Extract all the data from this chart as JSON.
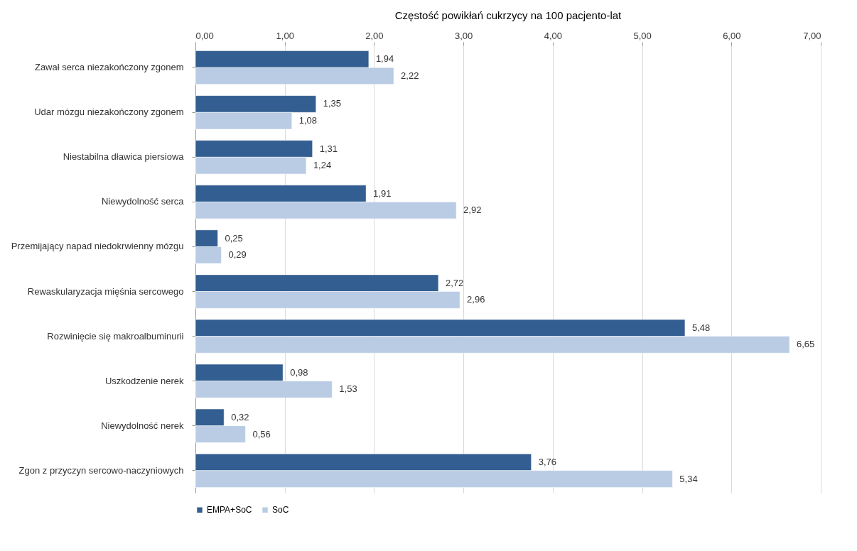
{
  "chart_data": {
    "type": "bar",
    "orientation": "horizontal",
    "title": "Częstość powikłań cukrzycy na 100 pacjento-lat",
    "categories": [
      "Zawał serca niezakończony zgonem",
      "Udar mózgu niezakończony zgonem",
      "Niestabilna dławica piersiowa",
      "Niewydolność serca",
      "Przemijający napad niedokrwienny mózgu",
      "Rewaskularyzacja mięśnia sercowego",
      "Rozwinięcie się makroalbuminurii",
      "Uszkodzenie nerek",
      "Niewydolność nerek",
      "Zgon z przyczyn sercowo-naczyniowych"
    ],
    "series": [
      {
        "name": "EMPA+SoC",
        "color": "#335e91",
        "values": [
          1.94,
          1.35,
          1.31,
          1.91,
          0.25,
          2.72,
          5.48,
          0.98,
          0.32,
          3.76
        ],
        "value_labels": [
          "1,94",
          "1,35",
          "1,31",
          "1,91",
          "0,25",
          "2,72",
          "5,48",
          "0,98",
          "0,32",
          "3,76"
        ]
      },
      {
        "name": "SoC",
        "color": "#b9cce4",
        "values": [
          2.22,
          1.08,
          1.24,
          2.92,
          0.29,
          2.96,
          6.65,
          1.53,
          0.56,
          5.34
        ],
        "value_labels": [
          "2,22",
          "1,08",
          "1,24",
          "2,92",
          "0,29",
          "2,96",
          "6,65",
          "1,53",
          "0,56",
          "5,34"
        ]
      }
    ],
    "xlim": [
      0,
      7
    ],
    "xticks": [
      {
        "value": 0,
        "label": "0,00"
      },
      {
        "value": 1,
        "label": "1,00"
      },
      {
        "value": 2,
        "label": "2,00"
      },
      {
        "value": 3,
        "label": "3,00"
      },
      {
        "value": 4,
        "label": "4,00"
      },
      {
        "value": 5,
        "label": "5,00"
      },
      {
        "value": 6,
        "label": "6,00"
      },
      {
        "value": 7,
        "label": "7,00"
      }
    ],
    "grid": "x",
    "legend": "bottom"
  }
}
